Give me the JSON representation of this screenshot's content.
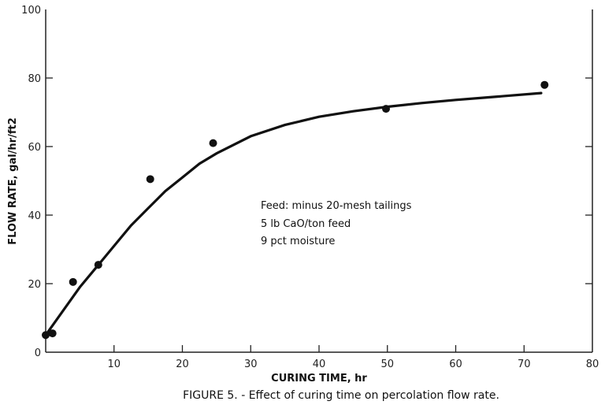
{
  "chart_data": {
    "type": "scatter",
    "caption": "FIGURE 5. - Effect of curing time on percolation flow rate.",
    "xlabel": "CURING TIME, hr",
    "ylabel": "FLOW RATE, gal/hr/ft2",
    "xlim": [
      0,
      80
    ],
    "ylim": [
      0,
      100
    ],
    "xticks": [
      0,
      10,
      20,
      30,
      40,
      50,
      60,
      70,
      80
    ],
    "yticks": [
      0,
      20,
      40,
      60,
      80,
      100
    ],
    "xtick_labels": [
      "10",
      "20",
      "30",
      "40",
      "50",
      "60",
      "70",
      "80"
    ],
    "ytick_labels": [
      "0",
      "20",
      "40",
      "60",
      "80",
      "100"
    ],
    "grid": false,
    "points": {
      "x": [
        0,
        1,
        4,
        7.7,
        15.3,
        24.5,
        49.8,
        73
      ],
      "y": [
        5,
        5.5,
        20.5,
        25.5,
        50.5,
        61,
        71,
        78
      ]
    },
    "fit_curve": {
      "x": [
        0,
        2.5,
        5,
        7.5,
        10,
        12.5,
        15,
        17.5,
        20,
        22.5,
        25,
        30,
        35,
        40,
        45,
        50,
        55,
        60,
        65,
        72.5
      ],
      "y": [
        5,
        12,
        19,
        25,
        31,
        37,
        42,
        47,
        51,
        55,
        58,
        63,
        66.3,
        68.7,
        70.3,
        71.6,
        72.7,
        73.6,
        74.4,
        75.6
      ]
    },
    "annotations": [
      "Feed: minus 20-mesh tailings",
      "5 lb CaO/ton feed",
      "9 pct moisture"
    ]
  }
}
